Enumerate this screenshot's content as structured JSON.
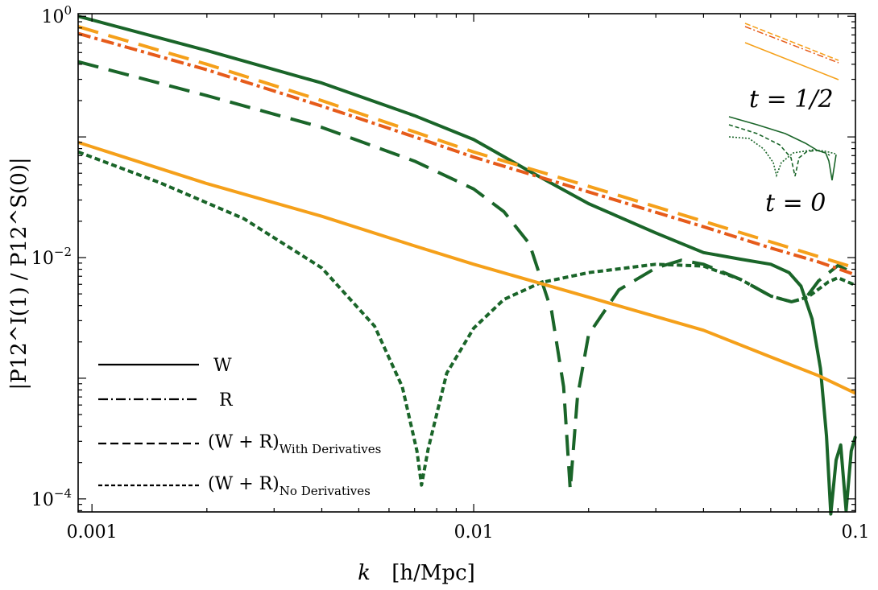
{
  "chart_data": {
    "type": "line",
    "xscale": "log",
    "yscale": "log",
    "xlim": [
      0.00092,
      0.1
    ],
    "ylim": [
      7.8e-05,
      1.05
    ],
    "xlabel_main": "k",
    "xlabel_unit": "[h/Mpc]",
    "ylabel": "|P12^I(1) / P12^S(0)|",
    "x_ticks": [
      {
        "value": 0.001,
        "label": "0.001"
      },
      {
        "value": 0.01,
        "label": "0.01"
      },
      {
        "value": 0.1,
        "label": "0.1"
      }
    ],
    "y_ticks": [
      {
        "value": 1,
        "base": "10",
        "exp": "0"
      },
      {
        "value": 0.01,
        "base": "10",
        "exp": "−2"
      },
      {
        "value": 0.0001,
        "base": "10",
        "exp": "−4"
      }
    ],
    "legend": [
      {
        "style": "solid",
        "label": "W",
        "sub": ""
      },
      {
        "style": "dashdot",
        "label": "R",
        "sub": ""
      },
      {
        "style": "longdash",
        "label": "(W + R)",
        "sub": "With Derivatives"
      },
      {
        "style": "shortdash",
        "label": "(W + R)",
        "sub": "No Derivatives"
      }
    ],
    "annotations": [
      {
        "text": "t = 1/2",
        "applies_to": "orange curves (t = 1/2)"
      },
      {
        "text": "t = 0",
        "applies_to": "green curves (t = 0)"
      }
    ],
    "series": [
      {
        "name": "W, t=0",
        "color": "#1a6529",
        "style": "solid",
        "points": [
          [
            0.00092,
            1.0
          ],
          [
            0.002,
            0.52
          ],
          [
            0.004,
            0.28
          ],
          [
            0.007,
            0.15
          ],
          [
            0.01,
            0.095
          ],
          [
            0.014,
            0.052
          ],
          [
            0.02,
            0.028
          ],
          [
            0.03,
            0.016
          ],
          [
            0.04,
            0.011
          ],
          [
            0.05,
            0.0097
          ],
          [
            0.06,
            0.0088
          ],
          [
            0.067,
            0.0075
          ],
          [
            0.072,
            0.0058
          ],
          [
            0.077,
            0.0031
          ],
          [
            0.081,
            0.0012
          ],
          [
            0.084,
            0.00033
          ],
          [
            0.0862,
            7.5e-05
          ],
          [
            0.089,
            0.00021
          ],
          [
            0.0915,
            0.00028
          ],
          [
            0.0945,
            8e-05
          ],
          [
            0.0975,
            0.00025
          ],
          [
            0.1,
            0.00033
          ]
        ]
      },
      {
        "name": "W+R with derivatives, t=0",
        "color": "#1a6529",
        "style": "longdash",
        "points": [
          [
            0.00092,
            0.42
          ],
          [
            0.002,
            0.22
          ],
          [
            0.004,
            0.12
          ],
          [
            0.007,
            0.063
          ],
          [
            0.01,
            0.037
          ],
          [
            0.012,
            0.024
          ],
          [
            0.014,
            0.013
          ],
          [
            0.016,
            0.0036
          ],
          [
            0.0172,
            0.00085
          ],
          [
            0.0179,
            0.00012
          ],
          [
            0.0187,
            0.0007
          ],
          [
            0.02,
            0.0023
          ],
          [
            0.024,
            0.0054
          ],
          [
            0.03,
            0.0082
          ],
          [
            0.035,
            0.0095
          ],
          [
            0.04,
            0.0088
          ],
          [
            0.05,
            0.0066
          ],
          [
            0.06,
            0.0048
          ],
          [
            0.068,
            0.0043
          ],
          [
            0.074,
            0.0046
          ],
          [
            0.08,
            0.0064
          ],
          [
            0.09,
            0.0086
          ],
          [
            0.1,
            0.0073
          ]
        ]
      },
      {
        "name": "W+R no derivatives, t=0",
        "color": "#1a6529",
        "style": "shortdash",
        "points": [
          [
            0.00092,
            0.075
          ],
          [
            0.0015,
            0.042
          ],
          [
            0.0025,
            0.021
          ],
          [
            0.004,
            0.0082
          ],
          [
            0.0055,
            0.0027
          ],
          [
            0.0065,
            0.00085
          ],
          [
            0.0071,
            0.00025
          ],
          [
            0.0073,
            0.00013
          ],
          [
            0.0076,
            0.00026
          ],
          [
            0.0085,
            0.0011
          ],
          [
            0.01,
            0.0026
          ],
          [
            0.012,
            0.0045
          ],
          [
            0.015,
            0.0062
          ],
          [
            0.02,
            0.0075
          ],
          [
            0.03,
            0.0088
          ],
          [
            0.04,
            0.0085
          ],
          [
            0.05,
            0.0066
          ],
          [
            0.06,
            0.0048
          ],
          [
            0.068,
            0.0043
          ],
          [
            0.075,
            0.0047
          ],
          [
            0.085,
            0.0063
          ],
          [
            0.09,
            0.0068
          ],
          [
            0.1,
            0.0059
          ]
        ]
      },
      {
        "name": "W, t=1/2",
        "color": "#f5a01a",
        "style": "solid",
        "points": [
          [
            0.00092,
            0.09
          ],
          [
            0.002,
            0.041
          ],
          [
            0.004,
            0.022
          ],
          [
            0.007,
            0.0125
          ],
          [
            0.01,
            0.0088
          ],
          [
            0.02,
            0.0047
          ],
          [
            0.04,
            0.0025
          ],
          [
            0.06,
            0.0015
          ],
          [
            0.08,
            0.00105
          ],
          [
            0.1,
            0.00075
          ]
        ]
      },
      {
        "name": "W+R, t=1/2",
        "color": "#f5a01a",
        "style": "longdash",
        "points": [
          [
            0.00092,
            0.82
          ],
          [
            0.002,
            0.4
          ],
          [
            0.004,
            0.2
          ],
          [
            0.007,
            0.11
          ],
          [
            0.01,
            0.075
          ],
          [
            0.02,
            0.039
          ],
          [
            0.04,
            0.02
          ],
          [
            0.06,
            0.0135
          ],
          [
            0.08,
            0.0102
          ],
          [
            0.1,
            0.0082
          ]
        ]
      },
      {
        "name": "R, t=1/2",
        "color": "#e65b1a",
        "style": "dashdot",
        "points": [
          [
            0.00092,
            0.72
          ],
          [
            0.002,
            0.36
          ],
          [
            0.004,
            0.18
          ],
          [
            0.007,
            0.1
          ],
          [
            0.01,
            0.068
          ],
          [
            0.02,
            0.035
          ],
          [
            0.04,
            0.018
          ],
          [
            0.06,
            0.012
          ],
          [
            0.08,
            0.0092
          ],
          [
            0.1,
            0.0072
          ]
        ]
      }
    ]
  }
}
